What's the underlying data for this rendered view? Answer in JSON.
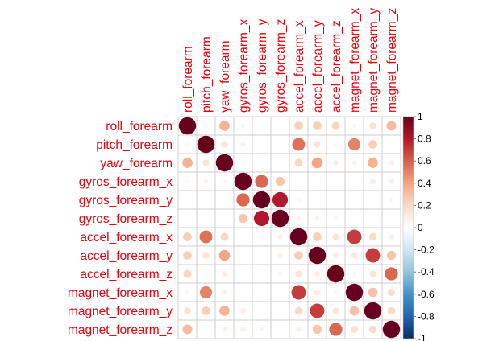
{
  "chart_data": {
    "type": "heatmap",
    "style": "corrplot-circle",
    "variables": [
      "roll_forearm",
      "pitch_forearm",
      "yaw_forearm",
      "gyros_forearm_x",
      "gyros_forearm_y",
      "gyros_forearm_z",
      "accel_forearm_x",
      "accel_forearm_y",
      "accel_forearm_z",
      "magnet_forearm_x",
      "magnet_forearm_y",
      "magnet_forearm_z"
    ],
    "matrix": [
      [
        1.0,
        -0.05,
        0.35,
        0.05,
        0.0,
        0.0,
        0.25,
        0.25,
        0.22,
        -0.05,
        0.16,
        0.32
      ],
      [
        -0.05,
        1.0,
        0.15,
        0.08,
        0.0,
        0.0,
        0.55,
        0.15,
        0.05,
        0.5,
        0.25,
        0.0
      ],
      [
        0.35,
        0.15,
        1.0,
        0.05,
        0.0,
        0.0,
        0.22,
        0.4,
        0.1,
        0.08,
        0.35,
        0.08
      ],
      [
        0.05,
        0.08,
        0.05,
        1.0,
        0.58,
        0.28,
        0.0,
        0.0,
        0.0,
        0.0,
        0.1,
        0.08
      ],
      [
        0.0,
        0.0,
        0.0,
        0.58,
        1.0,
        0.8,
        0.05,
        0.0,
        0.0,
        0.0,
        0.0,
        0.06
      ],
      [
        0.0,
        0.0,
        0.0,
        0.28,
        0.8,
        1.0,
        0.08,
        0.08,
        0.05,
        0.0,
        0.0,
        0.0
      ],
      [
        0.25,
        0.55,
        0.22,
        0.0,
        0.05,
        0.08,
        1.0,
        0.25,
        0.15,
        0.7,
        0.2,
        0.08
      ],
      [
        0.25,
        0.15,
        0.4,
        0.0,
        0.0,
        0.08,
        0.25,
        1.0,
        0.1,
        0.12,
        0.7,
        0.28
      ],
      [
        0.22,
        0.05,
        0.1,
        0.0,
        0.0,
        0.05,
        0.15,
        0.1,
        1.0,
        0.05,
        0.15,
        0.58
      ],
      [
        -0.05,
        0.5,
        0.08,
        0.0,
        0.0,
        0.0,
        0.7,
        0.12,
        0.05,
        1.0,
        0.3,
        0.18
      ],
      [
        0.16,
        0.25,
        0.35,
        0.1,
        0.0,
        0.0,
        0.2,
        0.7,
        0.15,
        0.3,
        1.0,
        0.2
      ],
      [
        0.32,
        0.0,
        0.08,
        0.08,
        0.06,
        0.0,
        0.08,
        0.28,
        0.58,
        0.18,
        0.2,
        1.0
      ]
    ],
    "colorbar": {
      "range": [
        -1,
        1
      ],
      "ticks": [
        "1",
        "0.8",
        "0.6",
        "0.4",
        "0.2",
        "0",
        "-0.2",
        "-0.4",
        "-0.6",
        "-0.8",
        "-1"
      ],
      "colors": [
        "#67001f",
        "#b2182b",
        "#d6604d",
        "#f4a582",
        "#fddbc7",
        "#ffffff",
        "#d1e5f0",
        "#92c5de",
        "#4393c3",
        "#2166ac",
        "#053061"
      ]
    },
    "label_color": "#e8000b",
    "grid": true,
    "legend": "right"
  }
}
